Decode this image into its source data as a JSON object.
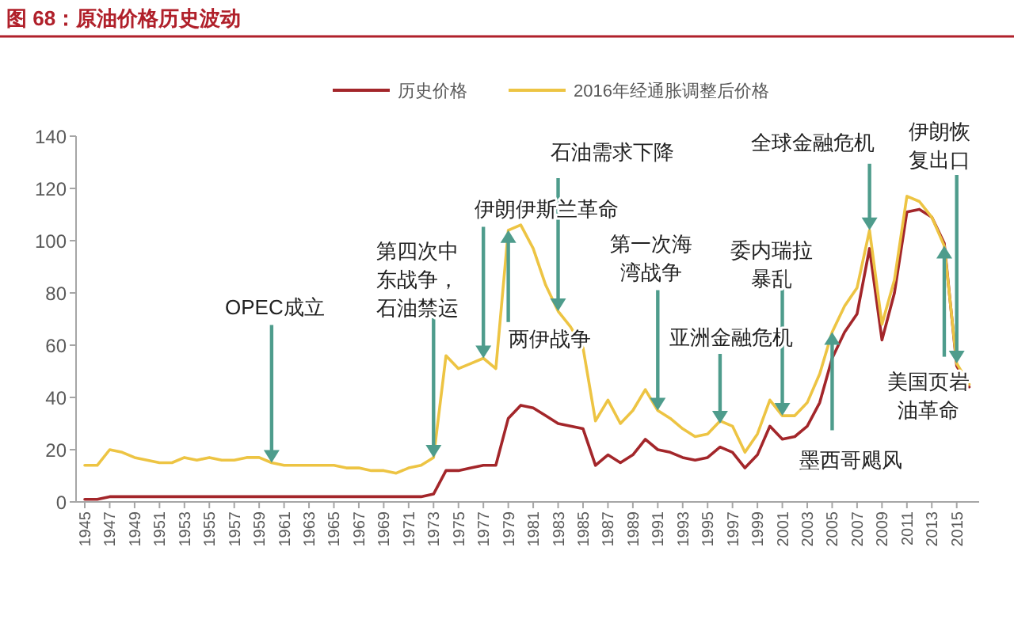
{
  "chart_data": {
    "type": "line",
    "title": "图 68：原油价格历史波动",
    "legend": "top",
    "marker": "none",
    "line_style": "solid",
    "grid": false,
    "x": [
      1945,
      1946,
      1947,
      1948,
      1949,
      1950,
      1951,
      1952,
      1953,
      1954,
      1955,
      1956,
      1957,
      1958,
      1959,
      1960,
      1961,
      1962,
      1963,
      1964,
      1965,
      1966,
      1967,
      1968,
      1969,
      1970,
      1971,
      1972,
      1973,
      1974,
      1975,
      1976,
      1977,
      1978,
      1979,
      1980,
      1981,
      1982,
      1983,
      1984,
      1985,
      1986,
      1987,
      1988,
      1989,
      1990,
      1991,
      1992,
      1993,
      1994,
      1995,
      1996,
      1997,
      1998,
      1999,
      2000,
      2001,
      2002,
      2003,
      2004,
      2005,
      2006,
      2007,
      2008,
      2009,
      2010,
      2011,
      2012,
      2013,
      2014,
      2015,
      2016
    ],
    "xlim": [
      1944.3,
      2016.8
    ],
    "xticks": [
      1945,
      1947,
      1949,
      1951,
      1953,
      1955,
      1957,
      1959,
      1961,
      1963,
      1965,
      1967,
      1969,
      1971,
      1973,
      1975,
      1977,
      1979,
      1981,
      1983,
      1985,
      1987,
      1989,
      1991,
      1993,
      1995,
      1997,
      1999,
      2001,
      2003,
      2005,
      2007,
      2009,
      2011,
      2013,
      2015
    ],
    "ylim": [
      0,
      140
    ],
    "yticks": [
      0,
      20,
      40,
      60,
      80,
      100,
      120,
      140
    ],
    "series": [
      {
        "name": "历史价格",
        "color": "#a3262a",
        "values": [
          1,
          1,
          2,
          2,
          2,
          2,
          2,
          2,
          2,
          2,
          2,
          2,
          2,
          2,
          2,
          2,
          2,
          2,
          2,
          2,
          2,
          2,
          2,
          2,
          2,
          2,
          2,
          2,
          3,
          12,
          12,
          13,
          14,
          14,
          32,
          37,
          36,
          33,
          30,
          29,
          28,
          14,
          18,
          15,
          18,
          24,
          20,
          19,
          17,
          16,
          17,
          21,
          19,
          13,
          18,
          29,
          24,
          25,
          29,
          38,
          55,
          65,
          72,
          97,
          62,
          80,
          111,
          112,
          109,
          99,
          52,
          44
        ]
      },
      {
        "name": "2016年经通胀调整后价格",
        "color": "#edc443",
        "values": [
          14,
          14,
          20,
          19,
          17,
          16,
          15,
          15,
          17,
          16,
          17,
          16,
          16,
          17,
          17,
          15,
          14,
          14,
          14,
          14,
          14,
          13,
          13,
          12,
          12,
          11,
          13,
          14,
          17,
          56,
          51,
          53,
          55,
          51,
          104,
          106,
          97,
          83,
          73,
          67,
          59,
          31,
          39,
          30,
          35,
          43,
          35,
          32,
          28,
          25,
          26,
          31,
          29,
          19,
          26,
          39,
          33,
          33,
          38,
          49,
          65,
          75,
          82,
          104,
          68,
          85,
          117,
          115,
          109,
          98,
          53,
          45
        ]
      }
    ],
    "annotations": [
      {
        "text": "OPEC成立",
        "x": 1960,
        "y": 15
      },
      {
        "text": "第四次中东战争，石油禁运",
        "x": 1973,
        "y": 17
      },
      {
        "text": "伊朗伊斯兰革命",
        "x": 1977,
        "y": 55
      },
      {
        "text": "两伊战争",
        "x": 1979,
        "y": 104
      },
      {
        "text": "石油需求下降",
        "x": 1983,
        "y": 73
      },
      {
        "text": "第一次海湾战争",
        "x": 1991,
        "y": 35
      },
      {
        "text": "亚洲金融危机",
        "x": 1996,
        "y": 30
      },
      {
        "text": "委内瑞拉暴乱",
        "x": 2001,
        "y": 33
      },
      {
        "text": "墨西哥飓风",
        "x": 2005,
        "y": 65
      },
      {
        "text": "全球金融危机",
        "x": 2008,
        "y": 104
      },
      {
        "text": "美国页岩油革命",
        "x": 2014,
        "y": 98
      },
      {
        "text": "伊朗恢复出口",
        "x": 2015,
        "y": 53
      }
    ]
  }
}
